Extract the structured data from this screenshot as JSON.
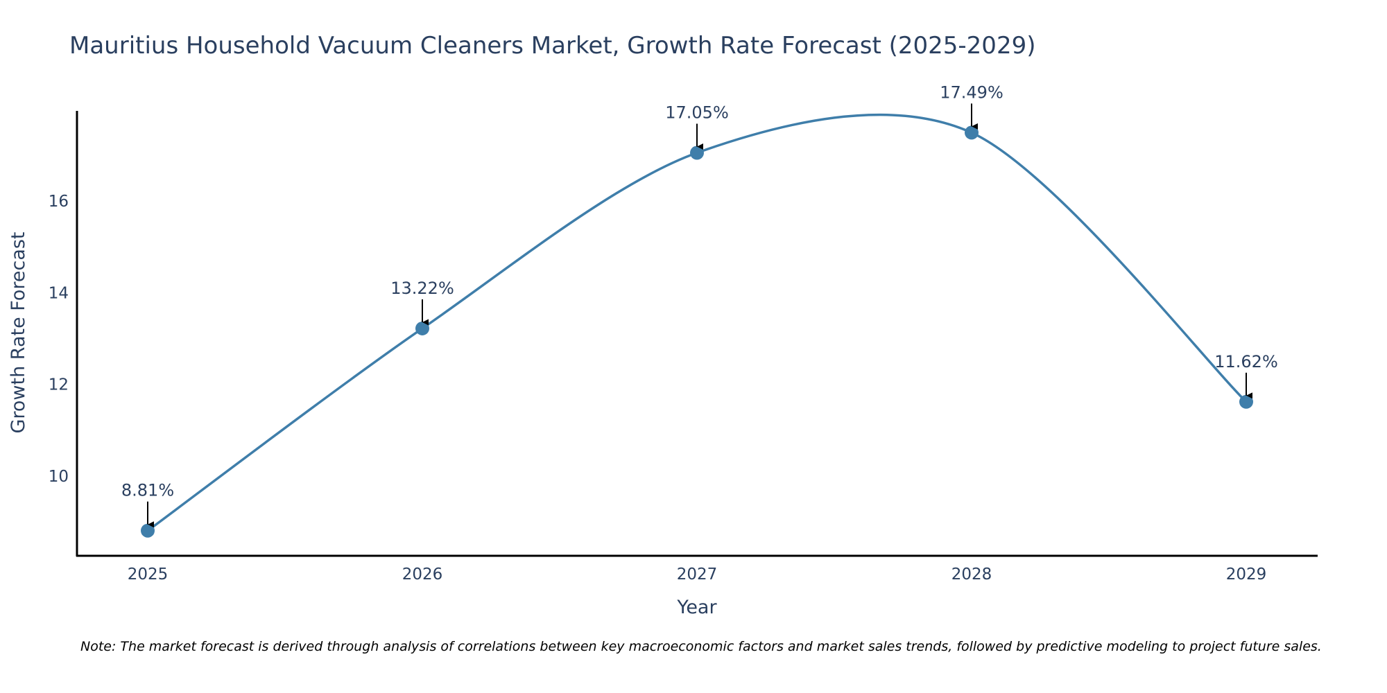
{
  "chart_data": {
    "type": "line",
    "title": "Mauritius Household Vacuum Cleaners Market, Growth Rate Forecast (2025-2029)",
    "xlabel": "Year",
    "ylabel": "Growth Rate Forecast",
    "categories": [
      "2025",
      "2026",
      "2027",
      "2028",
      "2029"
    ],
    "values": [
      8.81,
      13.22,
      17.05,
      17.49,
      11.62
    ],
    "data_labels": [
      "8.81%",
      "13.22%",
      "17.05%",
      "17.49%",
      "11.62%"
    ],
    "y_ticks": [
      10,
      12,
      14,
      16
    ],
    "y_tick_labels": [
      "10",
      "12",
      "14",
      "16"
    ],
    "ylim": [
      8.3,
      18
    ],
    "line_shape": "spline",
    "markers": true,
    "grid": false,
    "legend": "none",
    "line_color": "#3f7eaa",
    "marker_color": "#3f7eaa",
    "axis_color": "#000000",
    "text_color": "#2a3f5f",
    "note": "Note: The market forecast is derived through analysis of correlations between key macroeconomic factors and market sales trends, followed by predictive modeling to project future sales."
  }
}
